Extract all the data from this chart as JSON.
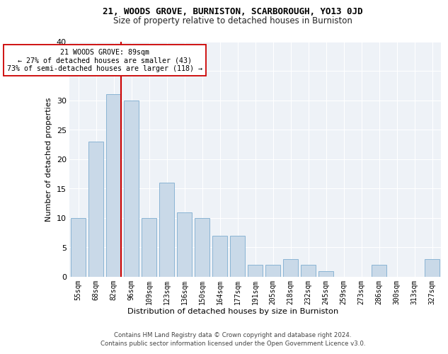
{
  "title1": "21, WOODS GROVE, BURNISTON, SCARBOROUGH, YO13 0JD",
  "title2": "Size of property relative to detached houses in Burniston",
  "xlabel": "Distribution of detached houses by size in Burniston",
  "ylabel": "Number of detached properties",
  "categories": [
    "55sqm",
    "68sqm",
    "82sqm",
    "96sqm",
    "109sqm",
    "123sqm",
    "136sqm",
    "150sqm",
    "164sqm",
    "177sqm",
    "191sqm",
    "205sqm",
    "218sqm",
    "232sqm",
    "245sqm",
    "259sqm",
    "273sqm",
    "286sqm",
    "300sqm",
    "313sqm",
    "327sqm"
  ],
  "values": [
    10,
    23,
    31,
    30,
    10,
    16,
    11,
    10,
    7,
    7,
    2,
    2,
    3,
    2,
    1,
    0,
    0,
    2,
    0,
    0,
    3
  ],
  "bar_color": "#c9d9e8",
  "bar_edge_color": "#8ab4d4",
  "property_line_color": "#cc0000",
  "property_bar_index": 2,
  "annotation_text": "21 WOODS GROVE: 89sqm\n← 27% of detached houses are smaller (43)\n73% of semi-detached houses are larger (118) →",
  "annotation_box_color": "white",
  "annotation_box_edge": "#cc0000",
  "ylim": [
    0,
    40
  ],
  "yticks": [
    0,
    5,
    10,
    15,
    20,
    25,
    30,
    35,
    40
  ],
  "footer1": "Contains HM Land Registry data © Crown copyright and database right 2024.",
  "footer2": "Contains public sector information licensed under the Open Government Licence v3.0.",
  "bg_color": "#eef2f7"
}
